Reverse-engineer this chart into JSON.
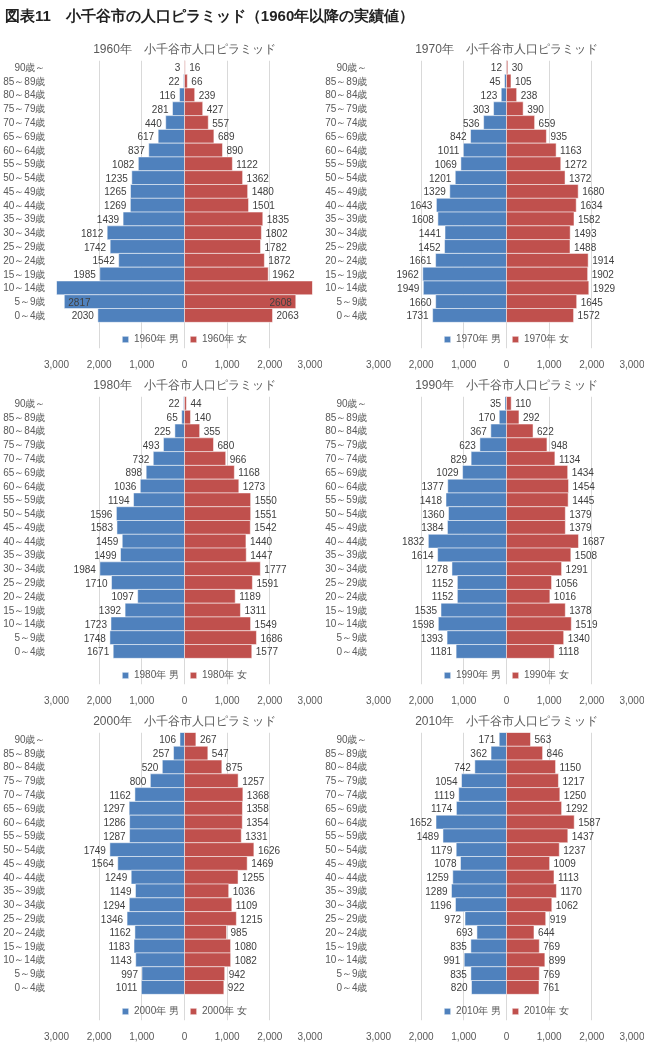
{
  "chart_data": [
    {
      "type": "other",
      "title": "図表11　小千谷市の人口ピラミッド（1960年以降の実績値）"
    },
    {
      "type": "bar",
      "orientation": "horizontal",
      "title": "1960年　小千谷市人口ピラミッド",
      "categories": [
        "90歳～",
        "85～89歳",
        "80～84歳",
        "75～79歳",
        "70～74歳",
        "65～69歳",
        "60～64歳",
        "55～59歳",
        "50～54歳",
        "45～49歳",
        "40～44歳",
        "35～39歳",
        "30～34歳",
        "25～29歳",
        "20～24歳",
        "15～19歳",
        "10～14歳",
        "5～9歳",
        "0～4歳"
      ],
      "xlim": [
        -3000,
        3000
      ],
      "xticks": [
        {
          "value": -3000,
          "label": "3,000"
        },
        {
          "value": -2000,
          "label": "2,000"
        },
        {
          "value": -1000,
          "label": "1,000"
        },
        0,
        {
          "value": 1000,
          "label": "1,000"
        },
        {
          "value": 2000,
          "label": "2,000"
        },
        {
          "value": 3000,
          "label": "3,000"
        }
      ],
      "grid": "x",
      "legend": "bottom",
      "series": [
        {
          "name": "1960年 男",
          "color": "#4f81bd",
          "values": [
            3,
            22,
            116,
            281,
            440,
            617,
            837,
            1082,
            1235,
            1265,
            1269,
            1439,
            1812,
            1742,
            1542,
            1985,
            3000,
            2817,
            2030
          ],
          "base": [
            -3,
            -22,
            -116,
            -281,
            -440,
            -617,
            -837,
            -1082,
            -1235,
            -1265,
            -1269,
            -1439,
            -1812,
            -1742,
            -1542,
            -1985,
            -3000,
            -2817,
            -2030
          ],
          "value_labels": [
            "3",
            "22",
            "116",
            "281",
            "440",
            "617",
            "837",
            "1082",
            "1235",
            "1265",
            "1269",
            "1439",
            "1812",
            "1742",
            "1542",
            "1985",
            null,
            "2817",
            "2030"
          ]
        },
        {
          "name": "1960年 女",
          "color": "#c0504d",
          "values": [
            16,
            66,
            239,
            427,
            557,
            689,
            890,
            1122,
            1362,
            1480,
            1501,
            1835,
            1802,
            1782,
            1872,
            1962,
            3000,
            2608,
            2063
          ],
          "value_labels": [
            "16",
            "66",
            "239",
            "427",
            "557",
            "689",
            "890",
            "1122",
            "1362",
            "1480",
            "1501",
            "1835",
            "1802",
            "1782",
            "1872",
            "1962",
            null,
            "2608",
            "2063"
          ]
        }
      ]
    },
    {
      "type": "bar",
      "orientation": "horizontal",
      "title": "1970年　小千谷市人口ピラミッド",
      "categories": [
        "90歳～",
        "85～89歳",
        "80～84歳",
        "75～79歳",
        "70～74歳",
        "65～69歳",
        "60～64歳",
        "55～59歳",
        "50～54歳",
        "45～49歳",
        "40～44歳",
        "35～39歳",
        "30～34歳",
        "25～29歳",
        "20～24歳",
        "15～19歳",
        "10～14歳",
        "5～9歳",
        "0～4歳"
      ],
      "xlim": [
        -3000,
        3000
      ],
      "xticks": [
        {
          "value": -3000,
          "label": "3,000"
        },
        {
          "value": -2000,
          "label": "2,000"
        },
        {
          "value": -1000,
          "label": "1,000"
        },
        0,
        {
          "value": 1000,
          "label": "1,000"
        },
        {
          "value": 2000,
          "label": "2,000"
        },
        {
          "value": 3000,
          "label": "3,000"
        }
      ],
      "grid": "x",
      "legend": "bottom",
      "series": [
        {
          "name": "1970年 男",
          "color": "#4f81bd",
          "values": [
            12,
            45,
            123,
            303,
            536,
            842,
            1011,
            1069,
            1201,
            1329,
            1643,
            1608,
            1441,
            1452,
            1661,
            1962,
            1949,
            1660,
            1731
          ],
          "base": [
            -12,
            -45,
            -123,
            -303,
            -536,
            -842,
            -1011,
            -1069,
            -1201,
            -1329,
            -1643,
            -1608,
            -1441,
            -1452,
            -1661,
            -1962,
            -1949,
            -1660,
            -1731
          ],
          "value_labels": [
            "12",
            "45",
            "123",
            "303",
            "536",
            "842",
            "1011",
            "1069",
            "1201",
            "1329",
            "1643",
            "1608",
            "1441",
            "1452",
            "1661",
            "1962",
            "1949",
            "1660",
            "1731"
          ]
        },
        {
          "name": "1970年 女",
          "color": "#c0504d",
          "values": [
            30,
            105,
            238,
            390,
            659,
            935,
            1163,
            1272,
            1372,
            1680,
            1634,
            1582,
            1493,
            1488,
            1914,
            1902,
            1929,
            1645,
            1572
          ],
          "value_labels": [
            "30",
            "105",
            "238",
            "390",
            "659",
            "935",
            "1163",
            "1272",
            "1372",
            "1680",
            "1634",
            "1582",
            "1493",
            "1488",
            "1914",
            "1902",
            "1929",
            "1645",
            "1572"
          ]
        }
      ]
    },
    {
      "type": "bar",
      "orientation": "horizontal",
      "title": "1980年　小千谷市人口ピラミッド",
      "categories": [
        "90歳～",
        "85～89歳",
        "80～84歳",
        "75～79歳",
        "70～74歳",
        "65～69歳",
        "60～64歳",
        "55～59歳",
        "50～54歳",
        "45～49歳",
        "40～44歳",
        "35～39歳",
        "30～34歳",
        "25～29歳",
        "20～24歳",
        "15～19歳",
        "10～14歳",
        "5～9歳",
        "0～4歳"
      ],
      "xlim": [
        -3000,
        3000
      ],
      "xticks": [
        {
          "value": -3000,
          "label": "3,000"
        },
        {
          "value": -2000,
          "label": "2,000"
        },
        {
          "value": -1000,
          "label": "1,000"
        },
        0,
        {
          "value": 1000,
          "label": "1,000"
        },
        {
          "value": 2000,
          "label": "2,000"
        },
        {
          "value": 3000,
          "label": "3,000"
        }
      ],
      "grid": "x",
      "legend": "bottom",
      "series": [
        {
          "name": "1980年 男",
          "color": "#4f81bd",
          "values": [
            22,
            65,
            225,
            493,
            732,
            898,
            1036,
            1194,
            1596,
            1583,
            1459,
            1499,
            1984,
            1710,
            1097,
            1392,
            1723,
            1748,
            1671
          ],
          "base": [
            -22,
            -65,
            -225,
            -493,
            -732,
            -898,
            -1036,
            -1194,
            -1596,
            -1583,
            -1459,
            -1499,
            -1984,
            -1710,
            -1097,
            -1392,
            -1723,
            -1748,
            -1671
          ],
          "value_labels": [
            "22",
            "65",
            "225",
            "493",
            "732",
            "898",
            "1036",
            "1194",
            "1596",
            "1583",
            "1459",
            "1499",
            "1984",
            "1710",
            "1097",
            "1392",
            "1723",
            "1748",
            "1671"
          ]
        },
        {
          "name": "1980年 女",
          "color": "#c0504d",
          "values": [
            44,
            140,
            355,
            680,
            966,
            1168,
            1273,
            1550,
            1551,
            1542,
            1440,
            1447,
            1777,
            1591,
            1189,
            1311,
            1549,
            1686,
            1577
          ],
          "value_labels": [
            "44",
            "140",
            "355",
            "680",
            "966",
            "1168",
            "1273",
            "1550",
            "1551",
            "1542",
            "1440",
            "1447",
            "1777",
            "1591",
            "1189",
            "1311",
            "1549",
            "1686",
            "1577"
          ]
        }
      ]
    },
    {
      "type": "bar",
      "orientation": "horizontal",
      "title": "1990年　小千谷市人口ピラミッド",
      "categories": [
        "90歳～",
        "85～89歳",
        "80～84歳",
        "75～79歳",
        "70～74歳",
        "65～69歳",
        "60～64歳",
        "55～59歳",
        "50～54歳",
        "45～49歳",
        "40～44歳",
        "35～39歳",
        "30～34歳",
        "25～29歳",
        "20～24歳",
        "15～19歳",
        "10～14歳",
        "5～9歳",
        "0～4歳"
      ],
      "xlim": [
        -3000,
        3000
      ],
      "xticks": [
        {
          "value": -3000,
          "label": "3,000"
        },
        {
          "value": -2000,
          "label": "2,000"
        },
        {
          "value": -1000,
          "label": "1,000"
        },
        0,
        {
          "value": 1000,
          "label": "1,000"
        },
        {
          "value": 2000,
          "label": "2,000"
        },
        {
          "value": 3000,
          "label": "3,000"
        }
      ],
      "grid": "x",
      "legend": "bottom",
      "series": [
        {
          "name": "1990年 男",
          "color": "#4f81bd",
          "values": [
            35,
            170,
            367,
            623,
            829,
            1029,
            1377,
            1418,
            1360,
            1384,
            1832,
            1614,
            1278,
            1152,
            1152,
            1535,
            1598,
            1393,
            1181
          ],
          "base": [
            -35,
            -170,
            -367,
            -623,
            -829,
            -1029,
            -1377,
            -1418,
            -1360,
            -1384,
            -1832,
            -1614,
            -1278,
            -1152,
            -1152,
            -1535,
            -1598,
            -1393,
            -1181
          ],
          "value_labels": [
            "35",
            "170",
            "367",
            "623",
            "829",
            "1029",
            "1377",
            "1418",
            "1360",
            "1384",
            "1832",
            "1614",
            "1278",
            "1152",
            "1152",
            "1535",
            "1598",
            "1393",
            "1181"
          ]
        },
        {
          "name": "1990年 女",
          "color": "#c0504d",
          "values": [
            110,
            292,
            622,
            948,
            1134,
            1434,
            1454,
            1445,
            1379,
            1379,
            1687,
            1508,
            1291,
            1056,
            1016,
            1378,
            1519,
            1340,
            1118
          ],
          "value_labels": [
            "110",
            "292",
            "622",
            "948",
            "1134",
            "1434",
            "1454",
            "1445",
            "1379",
            "1379",
            "1687",
            "1508",
            "1291",
            "1056",
            "1016",
            "1378",
            "1519",
            "1340",
            "1118"
          ]
        }
      ]
    },
    {
      "type": "bar",
      "orientation": "horizontal",
      "title": "2000年　小千谷市人口ピラミッド",
      "categories": [
        "90歳～",
        "85～89歳",
        "80～84歳",
        "75～79歳",
        "70～74歳",
        "65～69歳",
        "60～64歳",
        "55～59歳",
        "50～54歳",
        "45～49歳",
        "40～44歳",
        "35～39歳",
        "30～34歳",
        "25～29歳",
        "20～24歳",
        "15～19歳",
        "10～14歳",
        "5～9歳",
        "0～4歳"
      ],
      "xlim": [
        -3000,
        3000
      ],
      "xticks": [
        {
          "value": -3000,
          "label": "3,000"
        },
        {
          "value": -2000,
          "label": "2,000"
        },
        {
          "value": -1000,
          "label": "1,000"
        },
        0,
        {
          "value": 1000,
          "label": "1,000"
        },
        {
          "value": 2000,
          "label": "2,000"
        },
        {
          "value": 3000,
          "label": "3,000"
        }
      ],
      "grid": "x",
      "legend": "bottom",
      "series": [
        {
          "name": "2000年 男",
          "color": "#4f81bd",
          "values": [
            106,
            257,
            520,
            800,
            1162,
            1297,
            1286,
            1287,
            1749,
            1564,
            1249,
            1149,
            1294,
            1346,
            1162,
            1183,
            1143,
            997,
            1011
          ],
          "base": [
            -106,
            -257,
            -520,
            -800,
            -1162,
            -1297,
            -1286,
            -1287,
            -1749,
            -1564,
            -1249,
            -1149,
            -1294,
            -1346,
            -1162,
            -1183,
            -1143,
            -997,
            -1011
          ],
          "value_labels": [
            "106",
            "257",
            "520",
            "800",
            "1162",
            "1297",
            "1286",
            "1287",
            "1749",
            "1564",
            "1249",
            "1149",
            "1294",
            "1346",
            "1162",
            "1183",
            "1143",
            "997",
            "1011"
          ]
        },
        {
          "name": "2000年 女",
          "color": "#c0504d",
          "values": [
            267,
            547,
            875,
            1257,
            1368,
            1358,
            1354,
            1331,
            1626,
            1469,
            1255,
            1036,
            1109,
            1215,
            985,
            1080,
            1082,
            942,
            922
          ],
          "value_labels": [
            "267",
            "547",
            "875",
            "1257",
            "1368",
            "1358",
            "1354",
            "1331",
            "1626",
            "1469",
            "1255",
            "1036",
            "1109",
            "1215",
            "985",
            "1080",
            "1082",
            "942",
            "922"
          ]
        }
      ]
    },
    {
      "type": "bar",
      "orientation": "horizontal",
      "title": "2010年　小千谷市人口ピラミッド",
      "categories": [
        "90歳～",
        "85～89歳",
        "80～84歳",
        "75～79歳",
        "70～74歳",
        "65～69歳",
        "60～64歳",
        "55～59歳",
        "50～54歳",
        "45～49歳",
        "40～44歳",
        "35～39歳",
        "30～34歳",
        "25～29歳",
        "20～24歳",
        "15～19歳",
        "10～14歳",
        "5～9歳",
        "0～4歳"
      ],
      "xlim": [
        -3000,
        3000
      ],
      "xticks": [
        {
          "value": -3000,
          "label": "3,000"
        },
        {
          "value": -2000,
          "label": "2,000"
        },
        {
          "value": -1000,
          "label": "1,000"
        },
        0,
        {
          "value": 1000,
          "label": "1,000"
        },
        {
          "value": 2000,
          "label": "2,000"
        },
        {
          "value": 3000,
          "label": "3,000"
        }
      ],
      "grid": "x",
      "legend": "bottom",
      "series": [
        {
          "name": "2010年 男",
          "color": "#4f81bd",
          "values": [
            171,
            362,
            742,
            1054,
            1119,
            1174,
            1652,
            1489,
            1179,
            1078,
            1259,
            1289,
            1196,
            972,
            693,
            835,
            991,
            835,
            820
          ],
          "base": [
            -171,
            -362,
            -742,
            -1054,
            -1119,
            -1174,
            -1652,
            -1489,
            -1179,
            -1078,
            -1259,
            -1289,
            -1196,
            -972,
            -693,
            -835,
            -991,
            -835,
            -820
          ],
          "value_labels": [
            "171",
            "362",
            "742",
            "1054",
            "1119",
            "1174",
            "1652",
            "1489",
            "1179",
            "1078",
            "1259",
            "1289",
            "1196",
            "972",
            "693",
            "835",
            "991",
            "835",
            "820"
          ]
        },
        {
          "name": "2010年 女",
          "color": "#c0504d",
          "values": [
            563,
            846,
            1150,
            1217,
            1250,
            1292,
            1587,
            1437,
            1237,
            1009,
            1113,
            1170,
            1062,
            919,
            644,
            769,
            899,
            769,
            761
          ],
          "value_labels": [
            "563",
            "846",
            "1150",
            "1217",
            "1250",
            "1292",
            "1587",
            "1437",
            "1237",
            "1009",
            "1113",
            "1170",
            "1062",
            "919",
            "644",
            "769",
            "899",
            "769",
            "761"
          ]
        }
      ]
    }
  ]
}
